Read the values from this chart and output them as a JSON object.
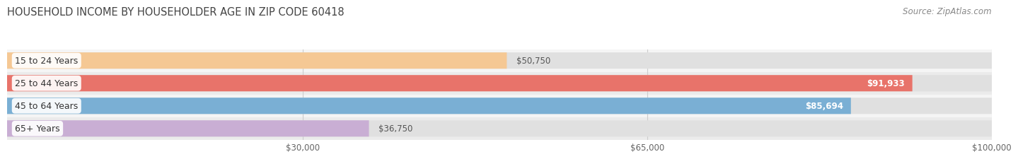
{
  "title": "HOUSEHOLD INCOME BY HOUSEHOLDER AGE IN ZIP CODE 60418",
  "source": "Source: ZipAtlas.com",
  "categories": [
    "15 to 24 Years",
    "25 to 44 Years",
    "45 to 64 Years",
    "65+ Years"
  ],
  "values": [
    50750,
    91933,
    85694,
    36750
  ],
  "bar_colors": [
    "#f5c894",
    "#e8736a",
    "#7aafd4",
    "#c9aed4"
  ],
  "label_colors": [
    "#555555",
    "#ffffff",
    "#ffffff",
    "#555555"
  ],
  "row_bg_colors": [
    "#f5f5f5",
    "#ebebeb"
  ],
  "xlim": [
    0,
    100000
  ],
  "xticks": [
    0,
    30000,
    65000,
    100000
  ],
  "xtick_labels": [
    "",
    "$30,000",
    "$65,000",
    "$100,000"
  ],
  "title_fontsize": 10.5,
  "source_fontsize": 8.5,
  "bar_label_fontsize": 8.5,
  "category_fontsize": 9,
  "background_color": "#ffffff",
  "grid_color": "#cccccc"
}
